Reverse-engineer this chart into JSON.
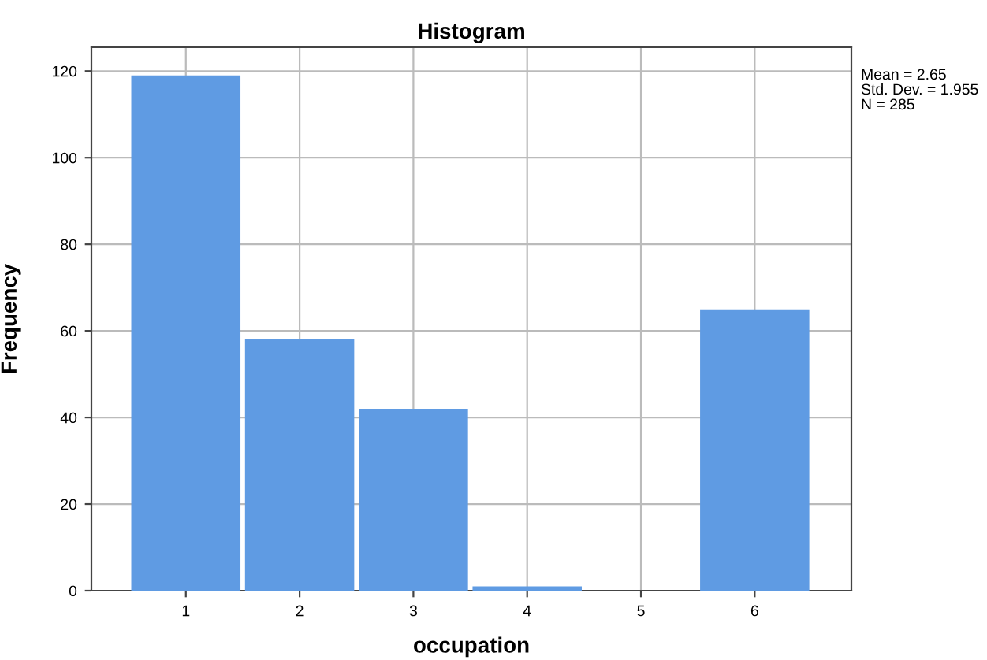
{
  "chart_data": {
    "type": "histogram",
    "title": "Histogram",
    "xlabel": "occupation",
    "ylabel": "Frequency",
    "bins": [
      0.5,
      1.5,
      2.5,
      3.5,
      4.5,
      5.5,
      6.5
    ],
    "values": [
      119,
      58,
      42,
      1,
      0,
      65
    ],
    "color": "#5f9be3",
    "xlim": [
      0.17,
      6.85
    ],
    "xticks": [
      1,
      2,
      3,
      4,
      5,
      6
    ],
    "ylim": [
      0,
      125.5
    ],
    "yticks": [
      0,
      20,
      40,
      60,
      80,
      100,
      120
    ],
    "grid": true,
    "annotations": [
      "Mean = 2.65",
      "Std. Dev. = 1.955",
      "N = 285"
    ]
  }
}
